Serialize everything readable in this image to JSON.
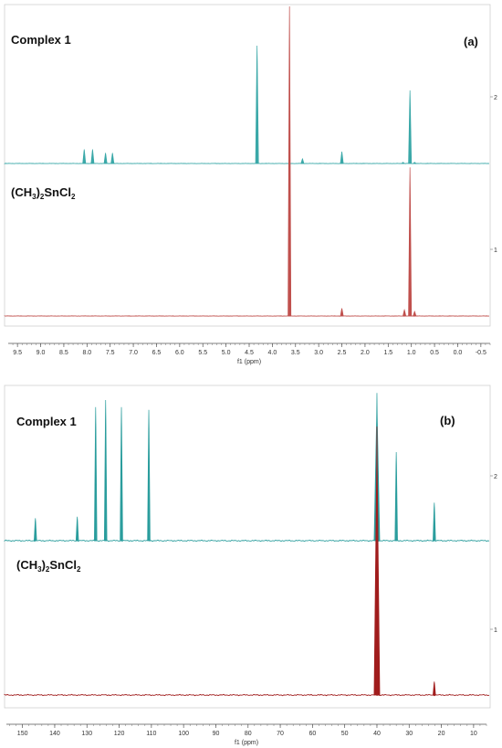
{
  "chart_data": [
    {
      "type": "line",
      "panel_label": "(a)",
      "xlabel": "f1 (ppm)",
      "x_reversed": true,
      "xlim": [
        9.7,
        -0.7
      ],
      "xticks": [
        9.5,
        9.0,
        8.5,
        8.0,
        7.5,
        7.0,
        6.5,
        6.0,
        5.5,
        5.0,
        4.5,
        4.0,
        3.5,
        3.0,
        2.5,
        2.0,
        1.5,
        1.0,
        0.5,
        0.0,
        -0.5
      ],
      "xtick_labels": [
        "9.5",
        "9.0",
        "8.5",
        "8.0",
        "7.5",
        "7.0",
        "6.5",
        "6.0",
        "5.5",
        "5.0",
        "4.5",
        "4.0",
        "3.5",
        "3.0",
        "2.5",
        "2.0",
        "1.5",
        "1.0",
        "0.5",
        "0.0",
        "-0.5"
      ],
      "side_labels": [
        "2",
        "1"
      ],
      "series": [
        {
          "name": "Complex 1",
          "name_sub": [
            "Complex 1"
          ],
          "color": "#3aa8a8",
          "peaks": [
            {
              "x": 8.06,
              "y": 0.12
            },
            {
              "x": 7.88,
              "y": 0.12
            },
            {
              "x": 7.6,
              "y": 0.09
            },
            {
              "x": 7.45,
              "y": 0.09
            },
            {
              "x": 4.33,
              "y": 1.0
            },
            {
              "x": 3.35,
              "y": 0.04
            },
            {
              "x": 2.5,
              "y": 0.1
            },
            {
              "x": 1.18,
              "y": 0.01
            },
            {
              "x": 1.03,
              "y": 0.62
            },
            {
              "x": 0.93,
              "y": 0.01
            }
          ]
        },
        {
          "name": "(CH3)2SnCl2",
          "name_parts": [
            [
              "(CH",
              false
            ],
            [
              "3",
              true
            ],
            [
              ")",
              false
            ],
            [
              "2",
              true
            ],
            [
              "SnCl",
              false
            ],
            [
              "2",
              true
            ]
          ],
          "color": "#c0504d",
          "peaks": [
            {
              "x": 3.63,
              "y": 1.0
            },
            {
              "x": 2.5,
              "y": 0.025
            },
            {
              "x": 1.15,
              "y": 0.02
            },
            {
              "x": 1.03,
              "y": 0.48
            },
            {
              "x": 0.93,
              "y": 0.015
            }
          ]
        }
      ]
    },
    {
      "type": "line",
      "panel_label": "(b)",
      "xlabel": "f1 (ppm)",
      "x_reversed": true,
      "xlim": [
        155,
        6
      ],
      "xticks": [
        150,
        140,
        130,
        120,
        110,
        100,
        90,
        80,
        70,
        60,
        50,
        40,
        30,
        20,
        10
      ],
      "xtick_labels": [
        "150",
        "140",
        "130",
        "120",
        "110",
        "100",
        "90",
        "80",
        "70",
        "60",
        "50",
        "40",
        "30",
        "20",
        "10"
      ],
      "side_labels": [
        "2",
        "1"
      ],
      "series": [
        {
          "name": "Complex 1",
          "color": "#2a9d9d",
          "peaks": [
            {
              "x": 146.0,
              "y": 0.16
            },
            {
              "x": 133.0,
              "y": 0.17
            },
            {
              "x": 127.3,
              "y": 0.95
            },
            {
              "x": 124.2,
              "y": 1.0
            },
            {
              "x": 119.3,
              "y": 0.95
            },
            {
              "x": 110.8,
              "y": 0.93
            },
            {
              "x": 40.0,
              "y": 1.05
            },
            {
              "x": 34.0,
              "y": 0.63
            },
            {
              "x": 22.2,
              "y": 0.27
            }
          ]
        },
        {
          "name": "(CH3)2SnCl2",
          "name_parts": [
            [
              "(CH",
              false
            ],
            [
              "3",
              true
            ],
            [
              ")",
              false
            ],
            [
              "2",
              true
            ],
            [
              "SnCl",
              false
            ],
            [
              "2",
              true
            ]
          ],
          "color": "#a01c1c",
          "peaks": [
            {
              "x": 40.0,
              "y": 1.0
            },
            {
              "x": 22.2,
              "y": 0.05
            }
          ]
        }
      ]
    }
  ]
}
